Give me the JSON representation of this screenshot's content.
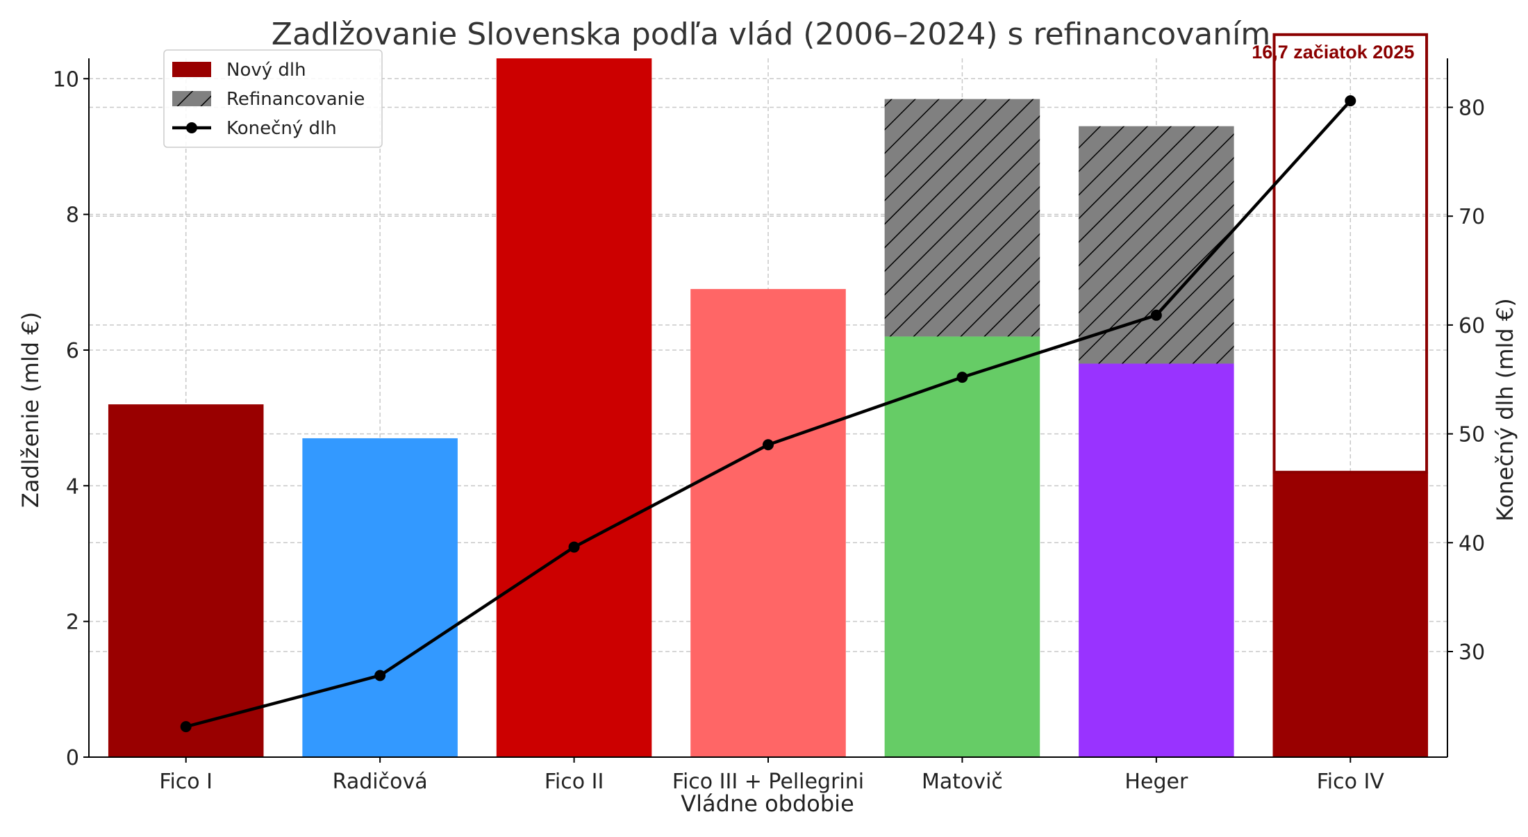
{
  "chart_data": {
    "type": "bar",
    "title": "Zadlžovanie Slovenska podľa vlád (2006–2024) s refinancovaním",
    "xlabel": "Vládne obdobie",
    "ylabel": "Zadlženie (mld €)",
    "y2label": "Konečný dlh (mld €)",
    "categories": [
      "Fico I",
      "Radičová",
      "Fico II",
      "Fico III + Pellegrini",
      "Matovič",
      "Heger",
      "Fico IV"
    ],
    "ylim": [
      0,
      10.3
    ],
    "y2lim": [
      20.3,
      84.5
    ],
    "yticks": [
      0,
      2,
      4,
      6,
      8,
      10
    ],
    "y2ticks": [
      30,
      40,
      50,
      60,
      70,
      80
    ],
    "grid": true,
    "legend_position": "top-left",
    "legend": [
      {
        "label": "Nový dlh",
        "kind": "bar"
      },
      {
        "label": "Refinancovanie",
        "kind": "hatched-bar"
      },
      {
        "label": "Konečný dlh",
        "kind": "line"
      }
    ],
    "series": [
      {
        "name": "Nový dlh",
        "type": "bar",
        "axis": "left",
        "values": [
          5.2,
          4.7,
          10.3,
          6.9,
          6.2,
          5.8,
          4.2
        ],
        "colors": [
          "#990000",
          "#3399ff",
          "#cc0000",
          "#ff6666",
          "#66cc66",
          "#9933ff",
          "#990000"
        ]
      },
      {
        "name": "Refinancovanie",
        "type": "bar-stacked",
        "axis": "left",
        "values": [
          0,
          0,
          0,
          0,
          3.5,
          3.5,
          0
        ],
        "color": "#808080"
      },
      {
        "name": "Konečný dlh",
        "type": "line",
        "axis": "right",
        "values": [
          23.1,
          27.8,
          39.6,
          49.0,
          55.2,
          60.9,
          80.6
        ],
        "color": "#000000"
      }
    ],
    "annotation": {
      "text": "16,7 začiatok 2025",
      "category": "Fico IV",
      "box_top_value": 10.65,
      "color": "#8b0000"
    }
  }
}
